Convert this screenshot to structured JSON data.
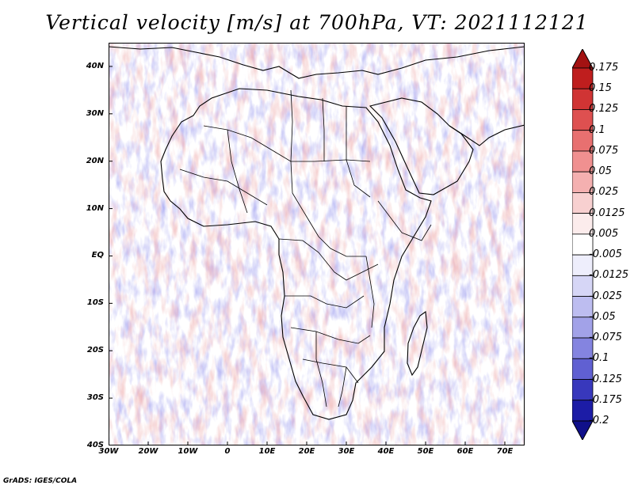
{
  "title": "Vertical velocity [m/s] at 700hPa, VT: 2021112121",
  "credit": "GrADS: IGES/COLA",
  "map": {
    "region": "Africa",
    "field": "vertical velocity at 700hPa",
    "lon_range": [
      -30,
      75
    ],
    "lat_range": [
      -40,
      45
    ],
    "lat_labels": [
      "40N",
      "30N",
      "20N",
      "10N",
      "EQ",
      "10S",
      "20S",
      "30S",
      "40S"
    ],
    "lat_values": [
      40,
      30,
      20,
      10,
      0,
      -10,
      -20,
      -30,
      -40
    ],
    "lon_labels": [
      "30W",
      "20W",
      "10W",
      "0",
      "10E",
      "20E",
      "30E",
      "40E",
      "50E",
      "60E",
      "70E"
    ],
    "lon_values": [
      -30,
      -20,
      -10,
      0,
      10,
      20,
      30,
      40,
      50,
      60,
      70
    ]
  },
  "colorbar": {
    "labels": [
      "0.175",
      "0.15",
      "0.125",
      "0.1",
      "0.075",
      "0.05",
      "0.025",
      "0.0125",
      "0.005",
      "-0.005",
      "-0.0125",
      "-0.025",
      "-0.05",
      "-0.075",
      "-0.1",
      "-0.125",
      "-0.175",
      "-0.2"
    ],
    "colors": [
      "#a31212",
      "#bf1e1e",
      "#d03434",
      "#de5050",
      "#e87070",
      "#f09090",
      "#f4b0b0",
      "#f8d0d0",
      "#fcecec",
      "#ffffff",
      "#eeeefc",
      "#d6d6f6",
      "#bdbdf0",
      "#a2a2e8",
      "#8484e0",
      "#6060d2",
      "#3838bc",
      "#1c1ca6",
      "#10108a"
    ]
  }
}
